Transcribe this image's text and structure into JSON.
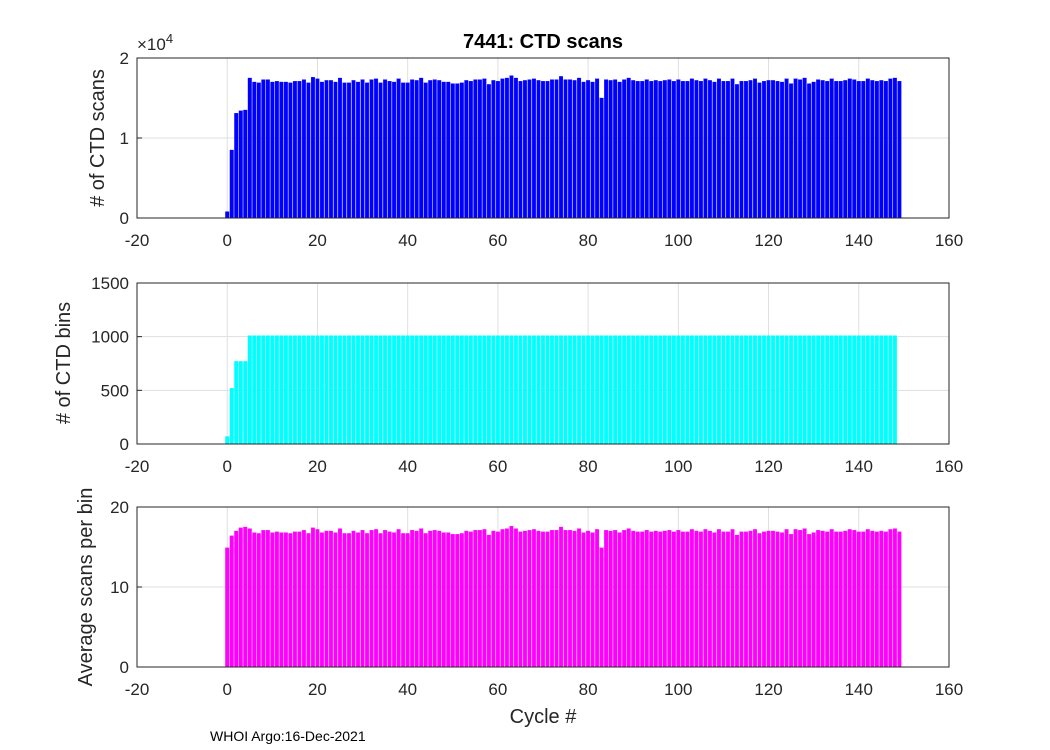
{
  "figure": {
    "footer": "WHOI Argo:16-Dec-2021"
  },
  "chart_data": [
    {
      "type": "bar",
      "title": "7441: CTD scans",
      "xlabel": "",
      "ylabel": "# of CTD scans",
      "y_exponent_base": "×10",
      "y_exponent_power": "4",
      "xlim": [
        -20,
        160
      ],
      "ylim": [
        0,
        2
      ],
      "xticks": [
        "-20",
        "0",
        "20",
        "40",
        "60",
        "80",
        "100",
        "120",
        "140",
        "160"
      ],
      "yticks": [
        "0",
        "1",
        "2"
      ],
      "grid": true,
      "color": "#0000ff",
      "x_start": 0,
      "values": [
        0.08,
        0.85,
        1.31,
        1.34,
        1.35,
        1.75,
        1.7,
        1.69,
        1.73,
        1.73,
        1.7,
        1.71,
        1.7,
        1.7,
        1.69,
        1.71,
        1.71,
        1.73,
        1.69,
        1.76,
        1.74,
        1.7,
        1.72,
        1.72,
        1.7,
        1.75,
        1.69,
        1.69,
        1.72,
        1.7,
        1.73,
        1.69,
        1.73,
        1.74,
        1.69,
        1.73,
        1.71,
        1.7,
        1.74,
        1.69,
        1.69,
        1.73,
        1.72,
        1.75,
        1.69,
        1.72,
        1.73,
        1.72,
        1.7,
        1.7,
        1.68,
        1.68,
        1.69,
        1.72,
        1.71,
        1.73,
        1.73,
        1.74,
        1.67,
        1.72,
        1.71,
        1.74,
        1.75,
        1.78,
        1.75,
        1.71,
        1.72,
        1.73,
        1.74,
        1.72,
        1.71,
        1.71,
        1.73,
        1.73,
        1.77,
        1.73,
        1.73,
        1.72,
        1.75,
        1.7,
        1.72,
        1.7,
        1.74,
        1.5,
        1.73,
        1.72,
        1.73,
        1.7,
        1.73,
        1.75,
        1.72,
        1.71,
        1.71,
        1.73,
        1.71,
        1.72,
        1.71,
        1.72,
        1.73,
        1.71,
        1.73,
        1.71,
        1.71,
        1.74,
        1.72,
        1.71,
        1.74,
        1.72,
        1.7,
        1.74,
        1.71,
        1.71,
        1.74,
        1.67,
        1.71,
        1.71,
        1.72,
        1.74,
        1.69,
        1.71,
        1.72,
        1.72,
        1.71,
        1.7,
        1.74,
        1.68,
        1.74,
        1.73,
        1.75,
        1.68,
        1.7,
        1.73,
        1.72,
        1.71,
        1.74,
        1.71,
        1.71,
        1.72,
        1.74,
        1.73,
        1.71,
        1.71,
        1.74,
        1.72,
        1.71,
        1.72,
        1.71,
        1.74,
        1.75,
        1.71
      ]
    },
    {
      "type": "bar",
      "title": "",
      "xlabel": "",
      "ylabel": "# of CTD bins",
      "xlim": [
        -20,
        160
      ],
      "ylim": [
        0,
        1500
      ],
      "xticks": [
        "-20",
        "0",
        "20",
        "40",
        "60",
        "80",
        "100",
        "120",
        "140",
        "160"
      ],
      "yticks": [
        "0",
        "500",
        "1000",
        "1500"
      ],
      "grid": true,
      "color": "#00ffff",
      "x_start": 0,
      "values": [
        70,
        520,
        770,
        770,
        770,
        1010,
        1010,
        1010,
        1010,
        1010,
        1010,
        1010,
        1010,
        1010,
        1010,
        1010,
        1010,
        1010,
        1010,
        1010,
        1010,
        1010,
        1010,
        1010,
        1010,
        1010,
        1010,
        1010,
        1010,
        1010,
        1010,
        1010,
        1010,
        1010,
        1010,
        1010,
        1010,
        1010,
        1010,
        1010,
        1010,
        1010,
        1010,
        1010,
        1010,
        1010,
        1010,
        1010,
        1010,
        1010,
        1010,
        1010,
        1010,
        1010,
        1010,
        1010,
        1010,
        1010,
        1010,
        1010,
        1010,
        1010,
        1010,
        1010,
        1010,
        1010,
        1010,
        1010,
        1010,
        1010,
        1010,
        1010,
        1010,
        1010,
        1010,
        1010,
        1010,
        1010,
        1010,
        1010,
        1010,
        1010,
        1010,
        1010,
        1010,
        1010,
        1010,
        1010,
        1010,
        1010,
        1010,
        1010,
        1010,
        1010,
        1010,
        1010,
        1010,
        1010,
        1010,
        1010,
        1010,
        1010,
        1010,
        1010,
        1010,
        1010,
        1010,
        1010,
        1010,
        1010,
        1010,
        1010,
        1010,
        1010,
        1010,
        1010,
        1010,
        1010,
        1010,
        1010,
        1010,
        1010,
        1010,
        1010,
        1010,
        1010,
        1010,
        1010,
        1010,
        1010,
        1010,
        1010,
        1010,
        1010,
        1010,
        1010,
        1010,
        1010,
        1010,
        1010,
        1010,
        1010,
        1010,
        1010,
        1010,
        1010,
        1010,
        1010,
        1010
      ]
    },
    {
      "type": "bar",
      "title": "",
      "xlabel": "Cycle #",
      "ylabel": "Average scans per bin",
      "xlim": [
        -20,
        160
      ],
      "ylim": [
        0,
        20
      ],
      "xticks": [
        "-20",
        "0",
        "20",
        "40",
        "60",
        "80",
        "100",
        "120",
        "140",
        "160"
      ],
      "yticks": [
        "0",
        "10",
        "20"
      ],
      "grid": true,
      "color": "#ff00ff",
      "x_start": 0,
      "values": [
        14.9,
        16.4,
        17.0,
        17.4,
        17.5,
        17.3,
        16.8,
        16.7,
        17.1,
        17.1,
        16.8,
        16.9,
        16.8,
        16.8,
        16.7,
        16.9,
        16.9,
        17.1,
        16.7,
        17.4,
        17.2,
        16.8,
        17.0,
        17.0,
        16.8,
        17.3,
        16.7,
        16.7,
        17.0,
        16.8,
        17.1,
        16.7,
        17.1,
        17.2,
        16.7,
        17.1,
        16.9,
        16.8,
        17.2,
        16.7,
        16.7,
        17.1,
        17.0,
        17.3,
        16.7,
        17.0,
        17.1,
        17.0,
        16.8,
        16.8,
        16.6,
        16.6,
        16.7,
        17.0,
        16.9,
        17.1,
        17.1,
        17.2,
        16.5,
        17.0,
        16.9,
        17.2,
        17.3,
        17.6,
        17.3,
        16.9,
        17.0,
        17.1,
        17.2,
        17.0,
        16.9,
        16.9,
        17.1,
        17.1,
        17.5,
        17.1,
        17.1,
        17.0,
        17.3,
        16.8,
        17.0,
        16.8,
        17.2,
        14.9,
        17.1,
        17.0,
        17.1,
        16.8,
        17.1,
        17.3,
        17.0,
        16.9,
        16.9,
        17.1,
        16.9,
        17.0,
        16.9,
        17.0,
        17.1,
        16.9,
        17.1,
        16.9,
        16.9,
        17.2,
        17.0,
        16.9,
        17.2,
        17.0,
        16.8,
        17.2,
        16.9,
        16.9,
        17.2,
        16.5,
        16.9,
        16.9,
        17.0,
        17.2,
        16.7,
        16.9,
        17.0,
        17.0,
        16.9,
        16.8,
        17.2,
        16.6,
        17.2,
        17.1,
        17.3,
        16.6,
        16.8,
        17.1,
        17.0,
        16.9,
        17.2,
        16.9,
        16.9,
        17.0,
        17.2,
        17.1,
        16.9,
        16.9,
        17.2,
        17.0,
        16.9,
        17.0,
        16.9,
        17.2,
        17.3,
        16.9
      ]
    }
  ]
}
